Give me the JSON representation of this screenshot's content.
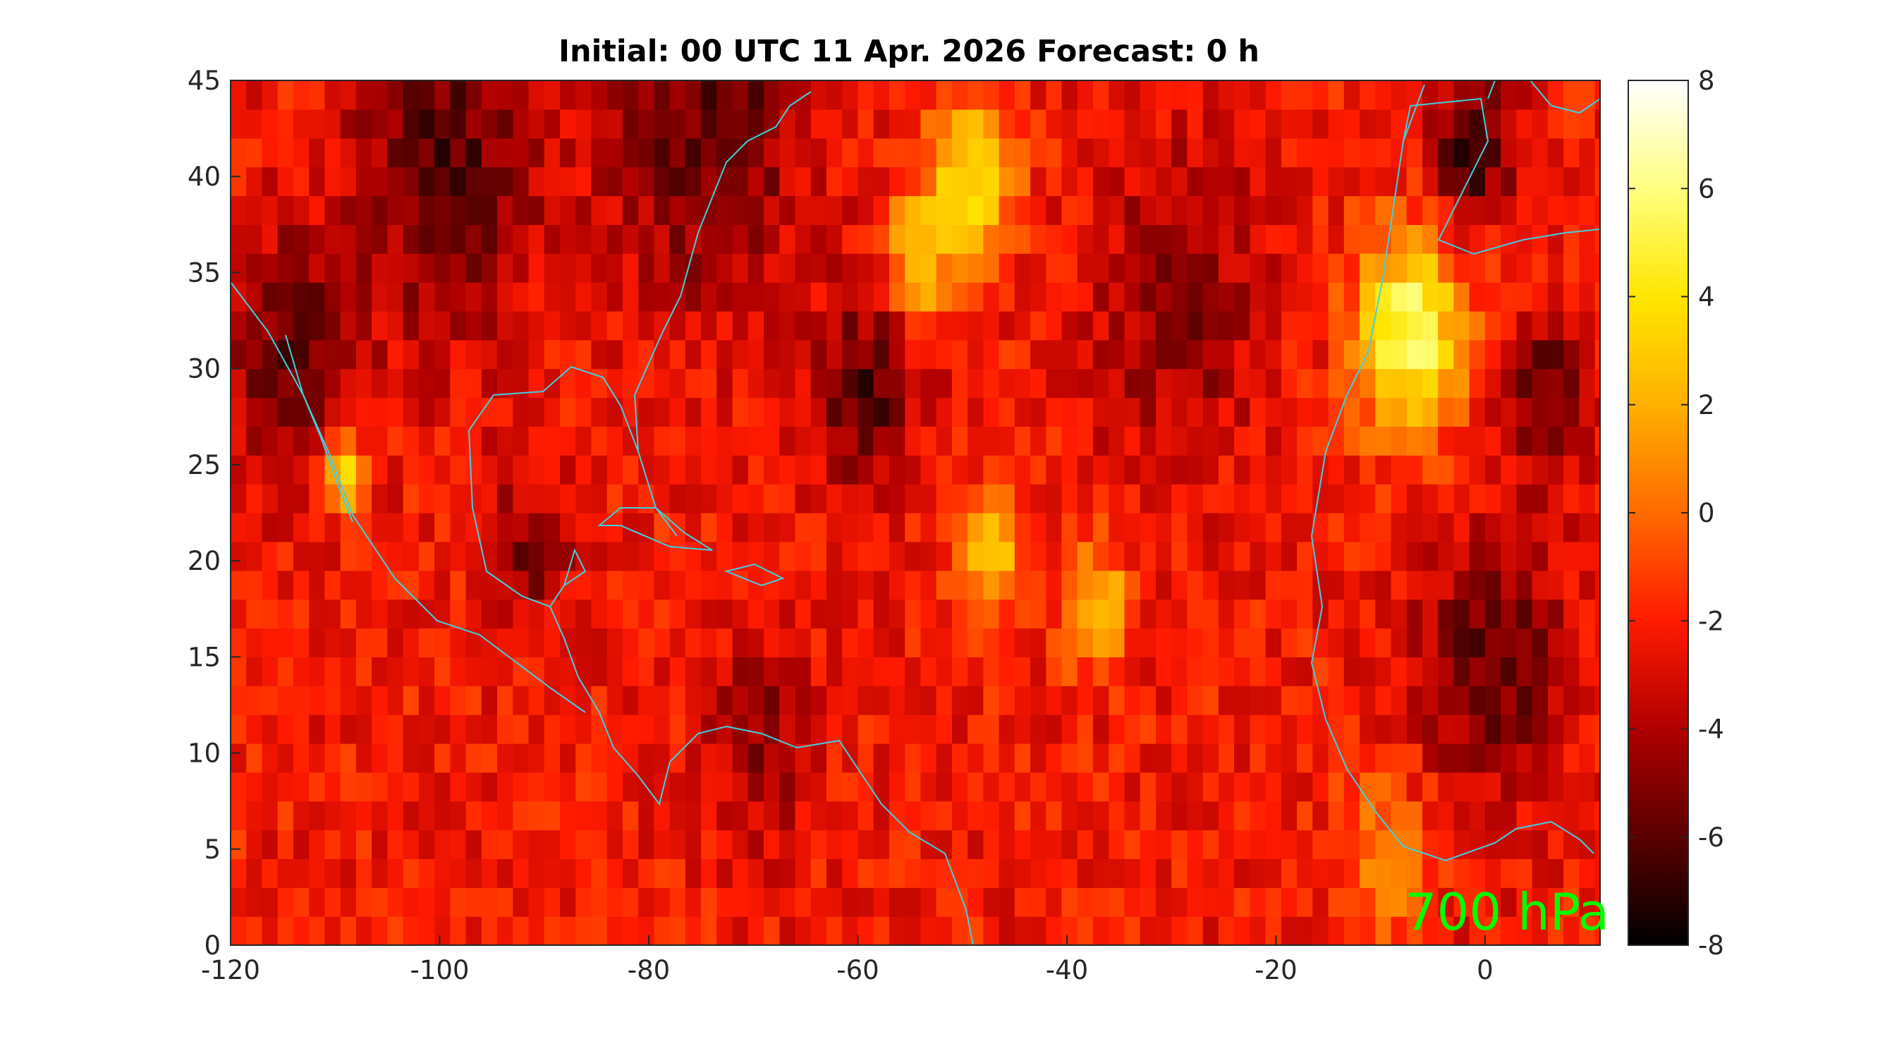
{
  "chart_data": {
    "type": "heatmap",
    "title": "Initial: 00 UTC 11 Apr. 2026 Forecast: 0 h",
    "xlabel": "",
    "ylabel": "",
    "xlim": [
      -120,
      11
    ],
    "ylim": [
      0,
      45
    ],
    "x_ticks": [
      "-120",
      "-100",
      "-80",
      "-60",
      "-40",
      "-20",
      "0"
    ],
    "y_ticks": [
      "0",
      "5",
      "10",
      "15",
      "20",
      "25",
      "30",
      "35",
      "40",
      "45"
    ],
    "colorbar": {
      "range": [
        -8,
        8
      ],
      "ticks": [
        "-8",
        "-6",
        "-4",
        "-2",
        "0",
        "2",
        "4",
        "6",
        "8"
      ],
      "colormap": "hot",
      "colors": [
        "#000000",
        "#5a0000",
        "#b00000",
        "#ff1a00",
        "#ff6a00",
        "#ffb000",
        "#ffe600",
        "#ffff80",
        "#ffffff"
      ]
    },
    "annotation": "700 hPa",
    "annotation_color": "#00ff00",
    "coastline_color": "#40d0e0",
    "field_features": [
      {
        "lon": -30,
        "lat": 33,
        "value": -5,
        "r": 8
      },
      {
        "lon": -50,
        "lat": 39,
        "value": 4,
        "r": 4
      },
      {
        "lon": -55,
        "lat": 35,
        "value": 3,
        "r": 3
      },
      {
        "lon": -75,
        "lat": 42,
        "value": -6,
        "r": 9
      },
      {
        "lon": -100,
        "lat": 40,
        "value": -6,
        "r": 9
      },
      {
        "lon": -115,
        "lat": 30,
        "value": -6,
        "r": 6
      },
      {
        "lon": -110,
        "lat": 24,
        "value": 4,
        "r": 2
      },
      {
        "lon": -8,
        "lat": 31,
        "value": 6,
        "r": 5
      },
      {
        "lon": -2,
        "lat": 41,
        "value": -7,
        "r": 4
      },
      {
        "lon": 5,
        "lat": 28,
        "value": -6,
        "r": 4
      },
      {
        "lon": 0,
        "lat": 14,
        "value": -6,
        "r": 7
      },
      {
        "lon": -38,
        "lat": 17,
        "value": 3,
        "r": 3
      },
      {
        "lon": -48,
        "lat": 20,
        "value": 3,
        "r": 3
      },
      {
        "lon": -60,
        "lat": 28,
        "value": -6,
        "r": 5
      },
      {
        "lon": -70,
        "lat": 10,
        "value": -5,
        "r": 5
      },
      {
        "lon": -92,
        "lat": 20,
        "value": -5,
        "r": 4
      },
      {
        "lon": -10,
        "lat": 4,
        "value": 1,
        "r": 4
      }
    ]
  }
}
